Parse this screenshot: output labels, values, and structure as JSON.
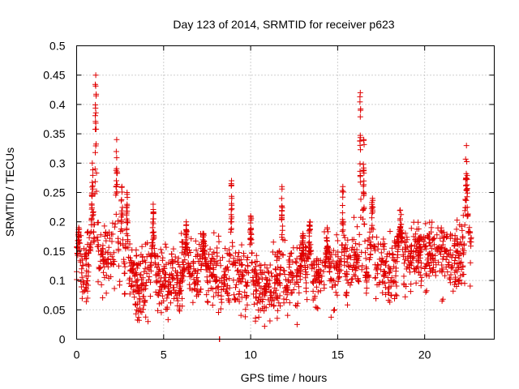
{
  "chart_data": {
    "type": "scatter",
    "title": "Day 123 of 2014, SRMTID for receiver p623",
    "xlabel": "GPS time / hours",
    "ylabel": "SRMTID / TECUs",
    "xlim": [
      0,
      24
    ],
    "ylim": [
      0,
      0.5
    ],
    "x_ticks": [
      0,
      5,
      10,
      15,
      20
    ],
    "x_tick_labels": [
      "0",
      "5",
      "10",
      "15",
      "20"
    ],
    "y_ticks": [
      0,
      0.05,
      0.1,
      0.15,
      0.2,
      0.25,
      0.3,
      0.35,
      0.4,
      0.45,
      0.5
    ],
    "y_tick_labels": [
      "0",
      "0.05",
      "0.1",
      "0.15",
      "0.2",
      "0.25",
      "0.3",
      "0.35",
      "0.4",
      "0.45",
      "0.5"
    ],
    "grid": true,
    "marker": "+",
    "color": "#e00000",
    "baseline": [
      [
        0,
        0.13
      ],
      [
        0.5,
        0.12
      ],
      [
        1,
        0.15
      ],
      [
        1.5,
        0.14
      ],
      [
        2,
        0.15
      ],
      [
        2.5,
        0.13
      ],
      [
        3,
        0.12
      ],
      [
        3.5,
        0.09
      ],
      [
        4,
        0.1
      ],
      [
        5,
        0.11
      ],
      [
        6,
        0.1
      ],
      [
        7,
        0.12
      ],
      [
        8,
        0.11
      ],
      [
        9,
        0.1
      ],
      [
        10,
        0.1
      ],
      [
        11,
        0.08
      ],
      [
        12,
        0.1
      ],
      [
        13,
        0.11
      ],
      [
        14,
        0.11
      ],
      [
        15,
        0.11
      ],
      [
        16,
        0.13
      ],
      [
        17,
        0.13
      ],
      [
        18,
        0.12
      ],
      [
        19,
        0.14
      ],
      [
        20,
        0.15
      ],
      [
        21,
        0.15
      ],
      [
        22,
        0.14
      ],
      [
        22.7,
        0.16
      ]
    ],
    "spikes": [
      [
        0.12,
        0.19,
        0.1
      ],
      [
        0.9,
        0.3,
        0.12
      ],
      [
        1.1,
        0.45,
        0.1
      ],
      [
        2.3,
        0.34,
        0.12
      ],
      [
        2.6,
        0.26,
        0.12
      ],
      [
        2.9,
        0.25,
        0.12
      ],
      [
        4.4,
        0.23,
        0.15
      ],
      [
        6.3,
        0.2,
        0.15
      ],
      [
        7.3,
        0.18,
        0.15
      ],
      [
        8.9,
        0.27,
        0.1
      ],
      [
        10.0,
        0.21,
        0.15
      ],
      [
        11.8,
        0.26,
        0.1
      ],
      [
        13.0,
        0.18,
        0.15
      ],
      [
        13.4,
        0.2,
        0.15
      ],
      [
        14.4,
        0.19,
        0.15
      ],
      [
        15.3,
        0.26,
        0.1
      ],
      [
        16.3,
        0.42,
        0.07
      ],
      [
        16.5,
        0.34,
        0.08
      ],
      [
        17.0,
        0.24,
        0.15
      ],
      [
        18.6,
        0.22,
        0.2
      ],
      [
        22.4,
        0.33,
        0.15
      ]
    ],
    "isolated_points": [
      [
        8.2,
        0.0
      ],
      [
        8.22,
        0.0
      ],
      [
        21.0,
        0.065
      ],
      [
        21.05,
        0.068
      ],
      [
        4.1,
        0.03
      ],
      [
        10.8,
        0.022
      ],
      [
        22.3,
        0.095
      ]
    ]
  }
}
